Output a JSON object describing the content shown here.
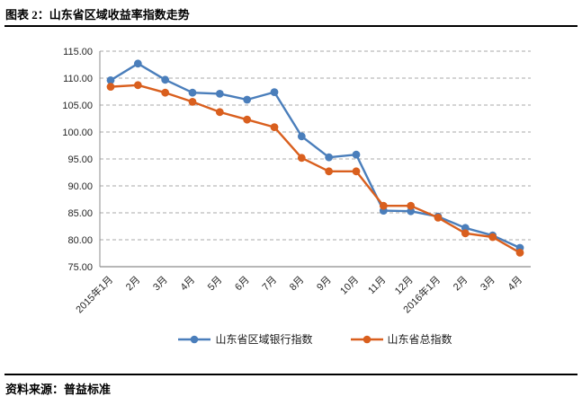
{
  "header": {
    "title": "图表 2：山东省区域收益率指数走势"
  },
  "footer": {
    "source_label": "资料来源：普益标准"
  },
  "chart_data": {
    "type": "line",
    "title": "山东省区域收益率指数走势",
    "categories": [
      "2015年1月",
      "2月",
      "3月",
      "4月",
      "5月",
      "6月",
      "7月",
      "8月",
      "9月",
      "10月",
      "11月",
      "12月",
      "2016年1月",
      "2月",
      "3月",
      "4月"
    ],
    "series": [
      {
        "name": "山东省区域银行指数",
        "color": "#4A7EBB",
        "marker": "circle",
        "values": [
          109.6,
          112.7,
          109.7,
          107.3,
          107.1,
          106.0,
          107.4,
          99.2,
          95.3,
          95.8,
          85.4,
          85.3,
          84.3,
          82.2,
          80.8,
          78.5
        ]
      },
      {
        "name": "山东省总指数",
        "color": "#D95F1E",
        "marker": "circle",
        "values": [
          108.4,
          108.7,
          107.3,
          105.6,
          103.7,
          102.3,
          100.9,
          95.2,
          92.7,
          92.7,
          86.3,
          86.3,
          84.1,
          81.2,
          80.5,
          77.6
        ]
      }
    ],
    "ylim": [
      75,
      115
    ],
    "ytick_step": 5,
    "ytick_labels": [
      "75.00",
      "80.00",
      "85.00",
      "90.00",
      "95.00",
      "100.00",
      "105.00",
      "110.00",
      "115.00"
    ],
    "grid": "horizontal-dashed",
    "legend_position": "bottom"
  },
  "style": {
    "grid_color": "#A8A8A8",
    "axis_color": "#8C8C8C",
    "tick_text_color": "#262626",
    "rule_color": "#000000"
  }
}
